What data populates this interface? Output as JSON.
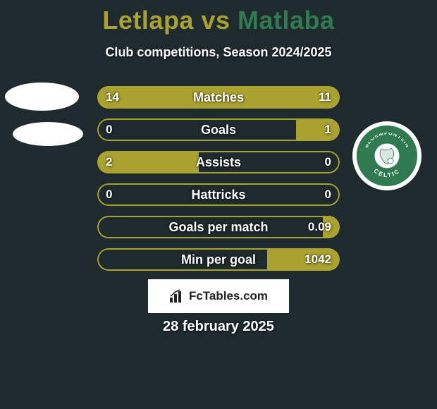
{
  "background_color": "#1f2a2e",
  "title": {
    "player1": "Letlapa",
    "vs": " vs ",
    "player2": "Matlaba",
    "color1": "#a9a22f",
    "color2": "#2f7a4f",
    "fontsize": 36
  },
  "subtitle": "Club competitions, Season 2024/2025",
  "accent_color_left": "#a9a22f",
  "accent_color_right": "#2f7a4f",
  "bar_border_color": "#a9a22f",
  "bar_fill_color": "#a9a22f",
  "stats": [
    {
      "label": "Matches",
      "left_val": "14",
      "right_val": "11",
      "left_pct": 56,
      "right_pct": 44
    },
    {
      "label": "Goals",
      "left_val": "0",
      "right_val": "1",
      "left_pct": 0,
      "right_pct": 18
    },
    {
      "label": "Assists",
      "left_val": "2",
      "right_val": "0",
      "left_pct": 42,
      "right_pct": 0
    },
    {
      "label": "Hattricks",
      "left_val": "0",
      "right_val": "0",
      "left_pct": 0,
      "right_pct": 0
    },
    {
      "label": "Goals per match",
      "left_val": "",
      "right_val": "0.09",
      "left_pct": 0,
      "right_pct": 7
    },
    {
      "label": "Min per goal",
      "left_val": "",
      "right_val": "1042",
      "left_pct": 0,
      "right_pct": 30
    }
  ],
  "club_badge": {
    "ring_color": "#2f7a4f",
    "inner_bg": "#ffffff",
    "text_top": "BLOEMFONTEIN",
    "text_bottom": "CELTIC"
  },
  "site_label": "FcTables.com",
  "date": "28 february 2025"
}
